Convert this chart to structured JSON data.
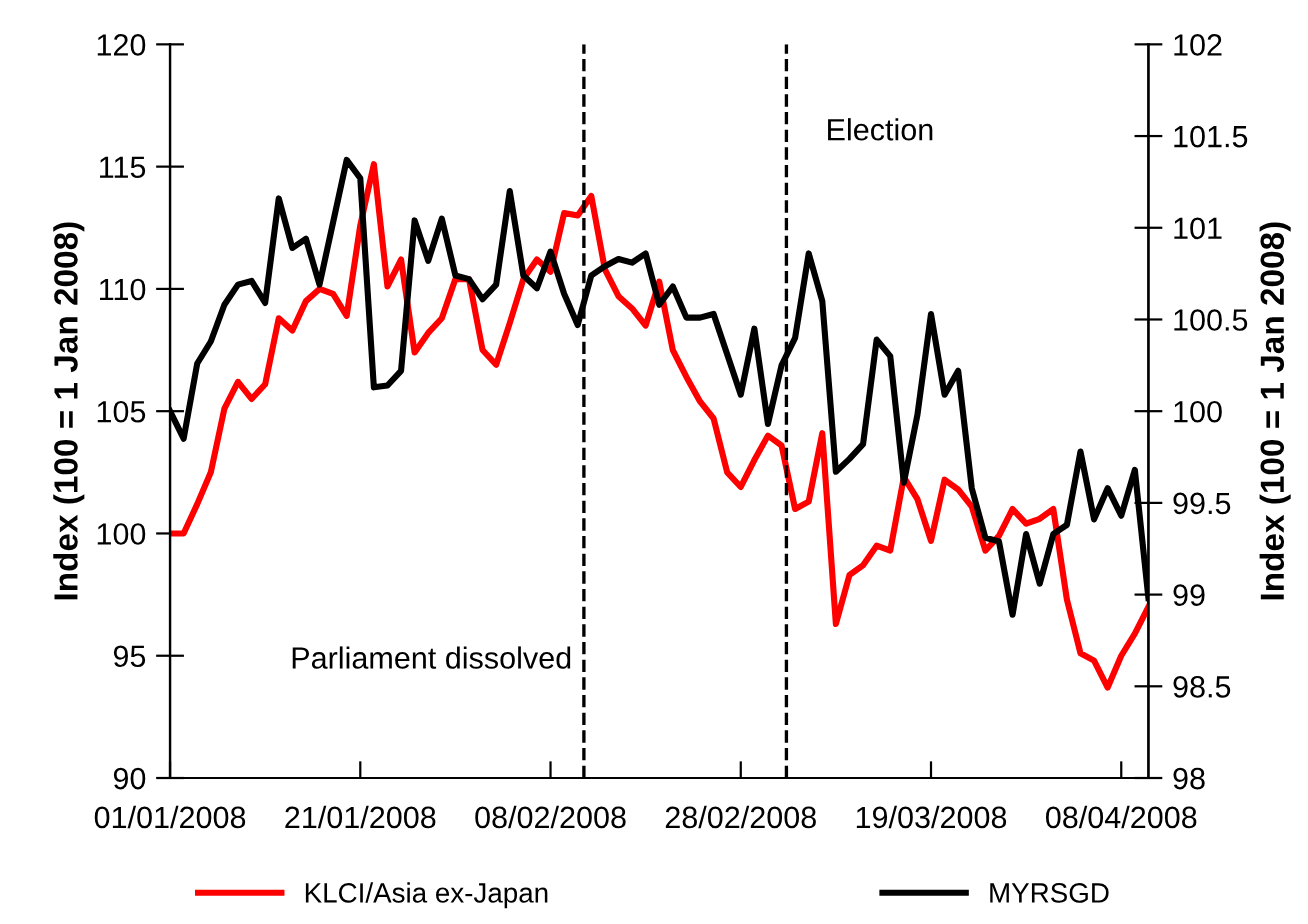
{
  "chart_data": {
    "type": "line",
    "ylabel": "Index (100 = 1 Jan 2008)",
    "y2label": "Index (100 = 1 Jan 2008)",
    "categories": [
      "01/01/2008",
      null,
      null,
      null,
      null,
      null,
      null,
      null,
      null,
      null,
      null,
      null,
      null,
      null,
      "21/01/2008",
      null,
      null,
      null,
      null,
      null,
      null,
      null,
      null,
      null,
      null,
      null,
      null,
      null,
      "08/02/2008",
      null,
      null,
      null,
      null,
      null,
      null,
      null,
      null,
      null,
      null,
      null,
      null,
      null,
      "28/02/2008",
      null,
      null,
      null,
      null,
      null,
      null,
      null,
      null,
      null,
      null,
      null,
      null,
      null,
      "19/03/2008",
      null,
      null,
      null,
      null,
      null,
      null,
      null,
      null,
      null,
      null,
      null,
      null,
      null,
      "08/04/2008",
      null,
      null
    ],
    "series": [
      {
        "name": "KLCI/Asia ex-Japan",
        "color": "#ff0000",
        "values": [
          100.0,
          100.0,
          101.2,
          102.5,
          105.1,
          106.2,
          105.5,
          106.1,
          108.8,
          108.3,
          109.5,
          110.0,
          109.8,
          108.9,
          112.6,
          115.1,
          110.1,
          111.2,
          107.4,
          108.2,
          108.8,
          110.4,
          110.4,
          107.5,
          106.9,
          108.6,
          110.4,
          111.2,
          110.7,
          113.1,
          113.0,
          113.8,
          110.8,
          109.7,
          109.2,
          108.5,
          110.3,
          107.5,
          106.4,
          105.4,
          104.7,
          102.5,
          101.9,
          103.0,
          104.0,
          103.6,
          101.0,
          101.3,
          104.1,
          96.3,
          98.3,
          98.7,
          99.5,
          99.3,
          102.3,
          101.4,
          99.7,
          102.2,
          101.8,
          101.1,
          99.3,
          99.9,
          101.0,
          100.4,
          100.6,
          101.0,
          97.3,
          95.1,
          94.8,
          93.7,
          95.0,
          95.9,
          97.0
        ]
      },
      {
        "name": "MYRSGD",
        "color": "#000000",
        "axis": "y2",
        "values": [
          100.0,
          99.85,
          100.26,
          100.38,
          100.58,
          100.69,
          100.71,
          100.59,
          101.16,
          100.89,
          100.94,
          100.69,
          101.03,
          101.37,
          101.27,
          100.13,
          100.14,
          100.22,
          101.04,
          100.82,
          101.05,
          100.74,
          100.72,
          100.61,
          100.69,
          101.2,
          100.74,
          100.67,
          100.87,
          100.64,
          100.47,
          100.74,
          100.79,
          100.83,
          100.81,
          100.86,
          100.58,
          100.68,
          100.51,
          100.51,
          100.53,
          100.31,
          100.09,
          100.45,
          99.93,
          100.25,
          100.4,
          100.86,
          100.6,
          99.67,
          99.74,
          99.82,
          100.39,
          100.3,
          99.61,
          99.98,
          100.53,
          100.09,
          100.22,
          99.58,
          99.31,
          99.29,
          98.89,
          99.33,
          99.06,
          99.33,
          99.38,
          99.78,
          99.41,
          99.58,
          99.43,
          99.68,
          98.98
        ]
      }
    ],
    "ylim": [
      90,
      120
    ],
    "yticks": [
      90,
      95,
      100,
      105,
      110,
      115,
      120
    ],
    "y2lim": [
      98,
      102
    ],
    "y2ticks": [
      98,
      98.5,
      99,
      99.5,
      100,
      100.5,
      101,
      101.5,
      102
    ],
    "annotations": [
      "Parliament dissolved",
      "Election"
    ],
    "legend": "bottom",
    "marker": "none",
    "line_style": "solid"
  }
}
